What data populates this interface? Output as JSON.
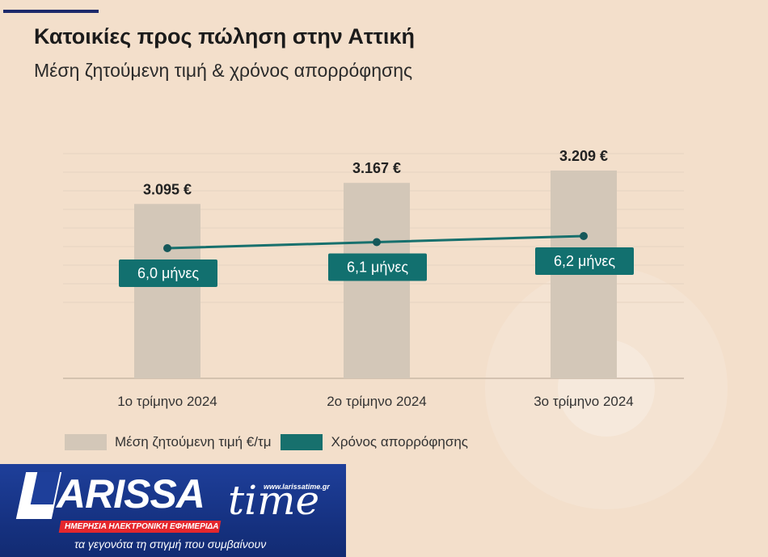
{
  "header": {
    "title": "Κατοικίες προς πώληση στην Αττική",
    "subtitle": "Μέση ζητούμενη τιμή & χρόνος απορρόφησης"
  },
  "colors": {
    "background": "#f3dfcb",
    "bar": "#d3c7b8",
    "line": "#17706d",
    "label_bg": "#12706f",
    "accent_rule": "#1d2a6b"
  },
  "chart_data": {
    "type": "bar",
    "categories": [
      "1ο τρίμηνο 2024",
      "2ο τρίμηνο 2024",
      "3ο τρίμηνο 2024"
    ],
    "series": [
      {
        "name": "Μέση ζητούμενη τιμή €/τμ",
        "type": "bar",
        "values": [
          3095,
          3167,
          3209
        ],
        "labels": [
          "3.095 €",
          "3.167 €",
          "3.209 €"
        ]
      },
      {
        "name": "Χρόνος απορρόφησης",
        "type": "line",
        "values": [
          6.0,
          6.1,
          6.2
        ],
        "labels": [
          "6,0 μήνες",
          "6,1 μήνες",
          "6,2 μήνες"
        ]
      }
    ],
    "legend": "bottom-left",
    "grid": true
  },
  "legend": {
    "items": [
      {
        "label": "Μέση ζητούμενη τιμή €/τμ"
      },
      {
        "label": "Χρόνος απορρόφησης"
      }
    ]
  },
  "logo": {
    "name_main": "ARISSA",
    "name_time": "time",
    "url": "www.larissatime.gr",
    "ribbon": "ΗΜΕΡΗΣΙΑ ΗΛΕΚΤΡΟΝΙΚΗ ΕΦΗΜΕΡΙΔΑ",
    "tagline": "τα γεγονότα τη στιγμή που συμβαίνουν"
  }
}
